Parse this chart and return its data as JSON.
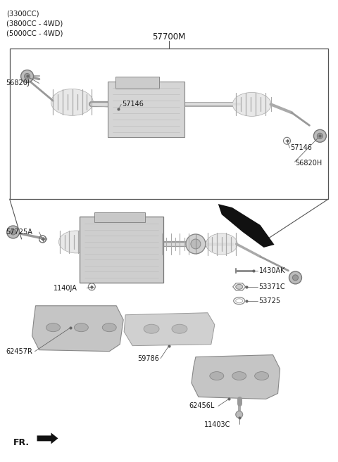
{
  "title": "57700M",
  "background_color": "#ffffff",
  "text_color": "#1a1a1a",
  "figsize": [
    4.8,
    6.57
  ],
  "dpi": 100,
  "top_labels": [
    "(3300CC)",
    "(3800CC - 4WD)",
    "(5000CC - 4WD)"
  ],
  "fr_text": "FR.",
  "label_fontsize": 7.0,
  "title_fontsize": 8.5
}
